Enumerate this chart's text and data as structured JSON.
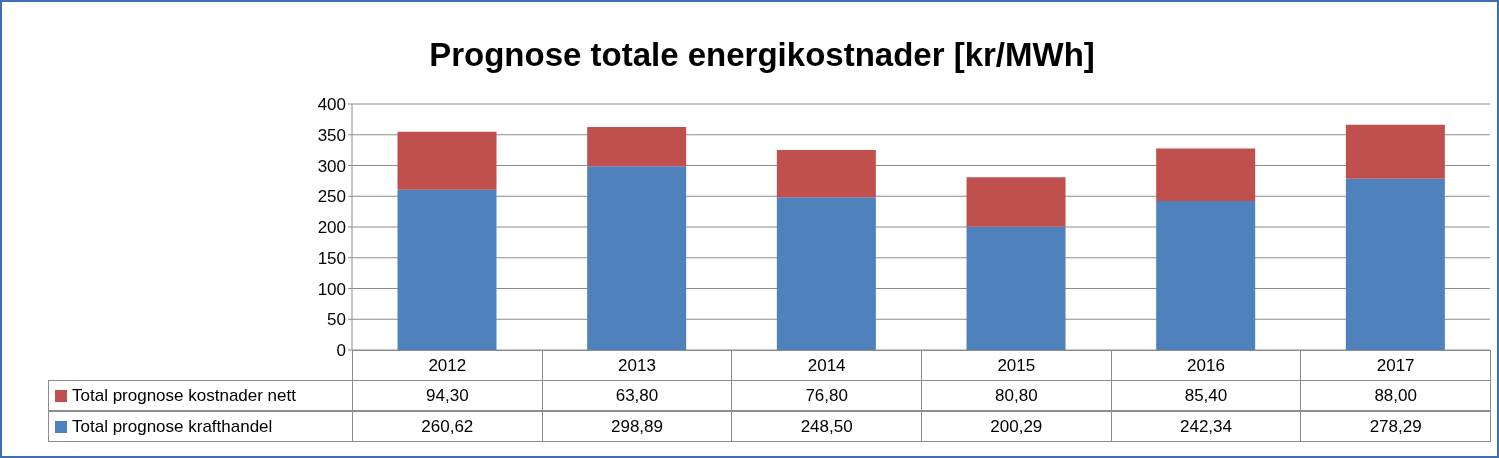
{
  "chart_data": {
    "type": "bar",
    "title": "Prognose totale energikostnader [kr/MWh]",
    "categories": [
      "2012",
      "2013",
      "2014",
      "2015",
      "2016",
      "2017"
    ],
    "stacked": true,
    "series": [
      {
        "name": "Total prognose krafthandel",
        "color": "#4f81bd",
        "values": [
          260.62,
          298.89,
          248.5,
          200.29,
          242.34,
          278.29
        ],
        "value_labels": [
          "260,62",
          "298,89",
          "248,50",
          "200,29",
          "242,34",
          "278,29"
        ]
      },
      {
        "name": "Total prognose kostnader nett",
        "color": "#c0504d",
        "values": [
          94.3,
          63.8,
          76.8,
          80.8,
          85.4,
          88.0
        ],
        "value_labels": [
          "94,30",
          "63,80",
          "76,80",
          "80,80",
          "85,40",
          "88,00"
        ]
      }
    ],
    "ylim": [
      0,
      400
    ],
    "yticks": [
      0,
      50,
      100,
      150,
      200,
      250,
      300,
      350,
      400
    ],
    "grid": "y",
    "legend": "bottom"
  }
}
